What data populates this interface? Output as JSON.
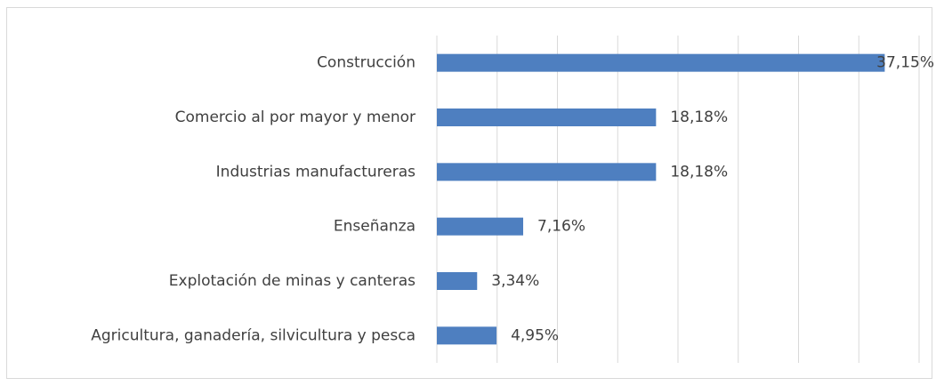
{
  "chart_data": {
    "type": "bar",
    "orientation": "horizontal",
    "categories": [
      "Construcción",
      "Comercio al por mayor y menor",
      "Industrias manufactureras",
      "Enseñanza",
      "Explotación de minas y canteras",
      "Agricultura, ganadería, silvicultura y pesca"
    ],
    "values": [
      37.15,
      18.18,
      18.18,
      7.16,
      3.34,
      4.95
    ],
    "value_labels": [
      "37,15%",
      "18,18%",
      "18,18%",
      "7,16%",
      "3,34%",
      "4,95%"
    ],
    "color": "#4e7fc0",
    "xlim": [
      0,
      40
    ],
    "xticks": [
      0,
      5,
      10,
      15,
      20,
      25,
      30,
      35,
      40
    ],
    "grid": true
  }
}
